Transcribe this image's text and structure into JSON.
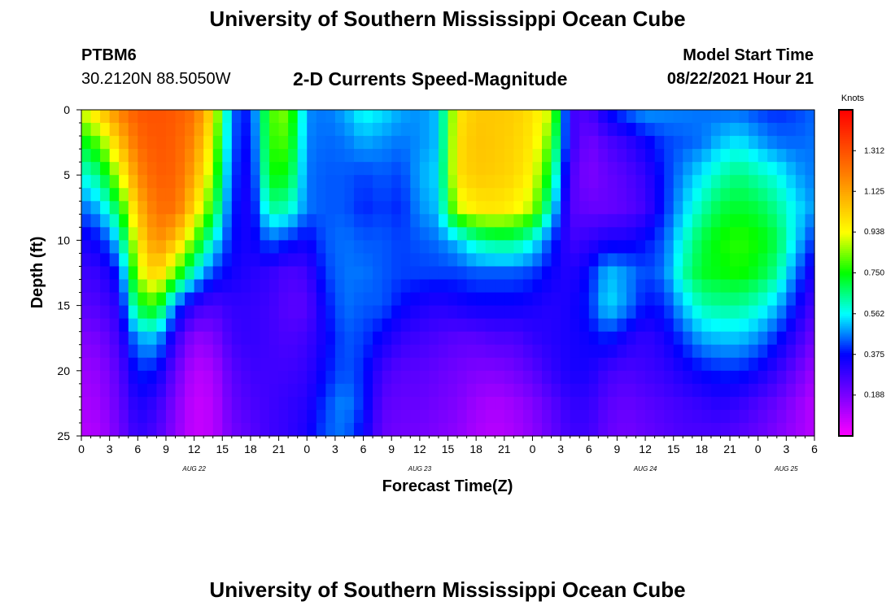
{
  "header": {
    "title_top": "University of Southern Mississippi Ocean Cube",
    "title_bottom": "University of Southern Mississippi Ocean Cube",
    "station_id": "PTBM6",
    "station_coords": "30.2120N  88.5050W",
    "model_start_label": "Model Start Time",
    "model_start_value": "08/22/2021 Hour 21"
  },
  "chart_data": {
    "type": "heatmap",
    "title": "2-D Currents Speed-Magnitude",
    "xlabel": "Forecast Time(Z)",
    "ylabel": "Depth (ft)",
    "colorbar_label": "Knots",
    "colorbar_ticks": [
      "1.312",
      "1.125",
      "0.938",
      "0.750",
      "0.562",
      "0.375",
      "0.188"
    ],
    "colorbar_range": [
      0,
      1.5
    ],
    "x_tick_labels": [
      "0",
      "3",
      "6",
      "9",
      "12",
      "15",
      "18",
      "21",
      "0",
      "3",
      "6",
      "9",
      "12",
      "15",
      "18",
      "21",
      "0",
      "3",
      "6",
      "9",
      "12",
      "15",
      "18",
      "21",
      "0",
      "3",
      "6"
    ],
    "day_labels": [
      {
        "label": "AUG 22",
        "hour": 12
      },
      {
        "label": "AUG 23",
        "hour": 36
      },
      {
        "label": "AUG 24",
        "hour": 60
      },
      {
        "label": "AUG 25",
        "hour": 75
      }
    ],
    "x_range_hours": [
      0,
      78
    ],
    "y_tick_labels": [
      "0",
      "5",
      "10",
      "15",
      "20",
      "25"
    ],
    "ylim": [
      0,
      25
    ],
    "y_reversed": true,
    "speed_field_knots": {
      "depth_levels_ft": [
        0,
        2.5,
        5,
        7.5,
        10,
        12.5,
        15,
        17.5,
        20,
        22.5,
        25
      ],
      "time_hours": [
        0,
        2,
        4,
        6,
        8,
        10,
        12,
        14,
        16,
        18,
        20,
        22,
        24,
        26,
        28,
        30,
        32,
        34,
        36,
        38,
        40,
        42,
        44,
        46,
        48,
        50,
        52,
        54,
        56,
        58,
        60,
        62,
        64,
        66,
        68,
        70,
        72,
        74,
        76,
        78
      ],
      "values_by_depth": [
        [
          0.9,
          1.05,
          1.2,
          1.3,
          1.31,
          1.29,
          1.24,
          1.0,
          0.45,
          0.38,
          0.8,
          0.85,
          0.48,
          0.46,
          0.5,
          0.58,
          0.55,
          0.5,
          0.48,
          0.52,
          0.98,
          1.05,
          1.05,
          1.04,
          1.0,
          0.9,
          0.28,
          0.26,
          0.38,
          0.45,
          0.5,
          0.48,
          0.47,
          0.46,
          0.45,
          0.45,
          0.42,
          0.4,
          0.42,
          0.45
        ],
        [
          0.72,
          0.82,
          1.06,
          1.25,
          1.3,
          1.28,
          1.18,
          0.92,
          0.44,
          0.36,
          0.78,
          0.8,
          0.47,
          0.45,
          0.46,
          0.5,
          0.48,
          0.46,
          0.48,
          0.52,
          1.0,
          1.06,
          1.05,
          1.03,
          0.98,
          0.8,
          0.3,
          0.2,
          0.26,
          0.3,
          0.36,
          0.42,
          0.44,
          0.46,
          0.52,
          0.55,
          0.5,
          0.46,
          0.45,
          0.46
        ],
        [
          0.58,
          0.66,
          0.9,
          1.18,
          1.28,
          1.27,
          1.12,
          0.85,
          0.42,
          0.34,
          0.75,
          0.74,
          0.46,
          0.44,
          0.44,
          0.42,
          0.44,
          0.42,
          0.5,
          0.54,
          1.0,
          1.05,
          1.04,
          1.02,
          0.95,
          0.7,
          0.26,
          0.18,
          0.22,
          0.25,
          0.3,
          0.4,
          0.48,
          0.55,
          0.62,
          0.66,
          0.62,
          0.58,
          0.5,
          0.46
        ],
        [
          0.45,
          0.52,
          0.72,
          1.08,
          1.24,
          1.24,
          1.02,
          0.75,
          0.4,
          0.33,
          0.64,
          0.62,
          0.46,
          0.44,
          0.44,
          0.4,
          0.42,
          0.4,
          0.48,
          0.52,
          0.9,
          0.98,
          0.99,
          0.96,
          0.88,
          0.58,
          0.25,
          0.22,
          0.22,
          0.24,
          0.28,
          0.4,
          0.52,
          0.62,
          0.7,
          0.72,
          0.7,
          0.64,
          0.55,
          0.48
        ],
        [
          0.34,
          0.38,
          0.55,
          0.98,
          1.18,
          1.08,
          0.82,
          0.58,
          0.38,
          0.34,
          0.45,
          0.4,
          0.36,
          0.44,
          0.46,
          0.44,
          0.44,
          0.42,
          0.44,
          0.46,
          0.52,
          0.62,
          0.66,
          0.66,
          0.58,
          0.42,
          0.28,
          0.3,
          0.34,
          0.34,
          0.38,
          0.44,
          0.58,
          0.7,
          0.76,
          0.78,
          0.76,
          0.7,
          0.54,
          0.4
        ],
        [
          0.28,
          0.3,
          0.4,
          0.88,
          1.05,
          0.82,
          0.58,
          0.42,
          0.35,
          0.32,
          0.3,
          0.26,
          0.28,
          0.42,
          0.46,
          0.46,
          0.44,
          0.42,
          0.42,
          0.42,
          0.42,
          0.44,
          0.44,
          0.44,
          0.42,
          0.36,
          0.32,
          0.38,
          0.52,
          0.48,
          0.42,
          0.46,
          0.62,
          0.72,
          0.74,
          0.76,
          0.72,
          0.64,
          0.46,
          0.32
        ],
        [
          0.24,
          0.26,
          0.32,
          0.72,
          0.78,
          0.45,
          0.3,
          0.26,
          0.3,
          0.3,
          0.28,
          0.24,
          0.24,
          0.38,
          0.46,
          0.44,
          0.44,
          0.38,
          0.34,
          0.32,
          0.34,
          0.36,
          0.36,
          0.36,
          0.34,
          0.32,
          0.34,
          0.4,
          0.55,
          0.48,
          0.38,
          0.4,
          0.52,
          0.62,
          0.64,
          0.64,
          0.6,
          0.52,
          0.38,
          0.26
        ],
        [
          0.18,
          0.2,
          0.28,
          0.5,
          0.52,
          0.3,
          0.16,
          0.18,
          0.28,
          0.3,
          0.28,
          0.26,
          0.28,
          0.36,
          0.44,
          0.42,
          0.36,
          0.3,
          0.28,
          0.26,
          0.24,
          0.24,
          0.26,
          0.26,
          0.3,
          0.32,
          0.34,
          0.36,
          0.4,
          0.34,
          0.3,
          0.34,
          0.42,
          0.5,
          0.52,
          0.52,
          0.48,
          0.4,
          0.3,
          0.2
        ],
        [
          0.14,
          0.16,
          0.24,
          0.4,
          0.38,
          0.22,
          0.1,
          0.12,
          0.24,
          0.28,
          0.28,
          0.28,
          0.3,
          0.38,
          0.44,
          0.4,
          0.28,
          0.24,
          0.24,
          0.22,
          0.2,
          0.18,
          0.18,
          0.2,
          0.24,
          0.3,
          0.34,
          0.34,
          0.28,
          0.26,
          0.28,
          0.3,
          0.34,
          0.38,
          0.4,
          0.4,
          0.36,
          0.3,
          0.22,
          0.14
        ],
        [
          0.12,
          0.14,
          0.22,
          0.34,
          0.3,
          0.18,
          0.08,
          0.1,
          0.22,
          0.26,
          0.28,
          0.3,
          0.32,
          0.42,
          0.48,
          0.4,
          0.24,
          0.22,
          0.22,
          0.2,
          0.18,
          0.14,
          0.12,
          0.14,
          0.18,
          0.24,
          0.3,
          0.3,
          0.24,
          0.22,
          0.24,
          0.26,
          0.28,
          0.3,
          0.32,
          0.3,
          0.26,
          0.22,
          0.16,
          0.1
        ],
        [
          0.1,
          0.12,
          0.2,
          0.3,
          0.26,
          0.16,
          0.08,
          0.1,
          0.2,
          0.24,
          0.28,
          0.3,
          0.34,
          0.44,
          0.46,
          0.36,
          0.22,
          0.2,
          0.2,
          0.18,
          0.16,
          0.12,
          0.1,
          0.12,
          0.16,
          0.22,
          0.28,
          0.28,
          0.22,
          0.2,
          0.22,
          0.24,
          0.26,
          0.26,
          0.26,
          0.24,
          0.22,
          0.18,
          0.14,
          0.1
        ]
      ]
    }
  }
}
